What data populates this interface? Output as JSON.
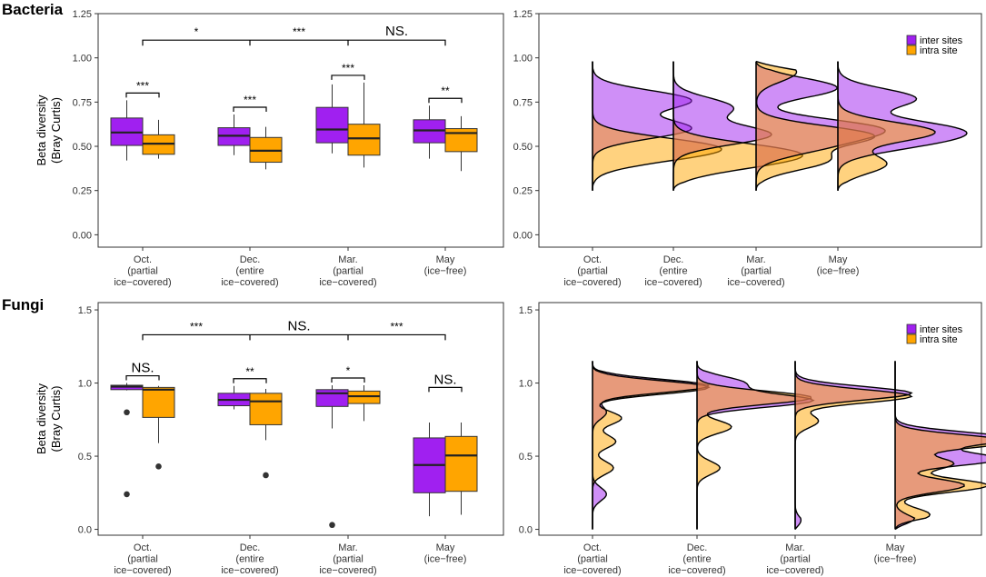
{
  "colors": {
    "inter": "#A020F0",
    "intra": "#FFA500",
    "overlap": "#E2885E"
  },
  "legend": {
    "inter": "inter sites",
    "intra": "intra site"
  },
  "ylabel_line1": "Beta diversity",
  "ylabel_line2": "(Bray Curtis)",
  "categories": [
    [
      "Oct.",
      "(partial",
      "ice−covered)"
    ],
    [
      "Dec.",
      "(entire",
      "ice−covered)"
    ],
    [
      "Mar.",
      "(partial",
      "ice−covered)"
    ],
    [
      "May",
      "(ice−free)"
    ]
  ],
  "chart_data": [
    {
      "type": "boxplot",
      "panel": "Bacteria",
      "ylim": [
        -0.07,
        1.25
      ],
      "yticks": [
        "0.00",
        "0.25",
        "0.50",
        "0.75",
        "1.00",
        "1.25"
      ],
      "series": [
        {
          "name": "inter sites",
          "boxes": [
            {
              "min": 0.42,
              "q1": 0.505,
              "median": 0.578,
              "q3": 0.66,
              "max": 0.76,
              "outliers": []
            },
            {
              "min": 0.45,
              "q1": 0.505,
              "median": 0.56,
              "q3": 0.605,
              "max": 0.68,
              "outliers": []
            },
            {
              "min": 0.46,
              "q1": 0.52,
              "median": 0.595,
              "q3": 0.72,
              "max": 0.85,
              "outliers": []
            },
            {
              "min": 0.43,
              "q1": 0.52,
              "median": 0.59,
              "q3": 0.65,
              "max": 0.73,
              "outliers": []
            }
          ]
        },
        {
          "name": "intra site",
          "boxes": [
            {
              "min": 0.43,
              "q1": 0.455,
              "median": 0.515,
              "q3": 0.565,
              "max": 0.65,
              "outliers": []
            },
            {
              "min": 0.37,
              "q1": 0.41,
              "median": 0.475,
              "q3": 0.55,
              "max": 0.61,
              "outliers": []
            },
            {
              "min": 0.38,
              "q1": 0.45,
              "median": 0.545,
              "q3": 0.625,
              "max": 0.86,
              "outliers": []
            },
            {
              "min": 0.36,
              "q1": 0.47,
              "median": 0.575,
              "q3": 0.6,
              "max": 0.67,
              "outliers": []
            }
          ]
        }
      ],
      "pair_significance": [
        "***",
        "***",
        "***",
        "**"
      ],
      "top_bracket": {
        "y": 1.1,
        "labels": [
          "*",
          "***",
          "NS."
        ]
      }
    },
    {
      "type": "density-ridges",
      "panel": "Bacteria",
      "ylim": [
        -0.07,
        1.25
      ],
      "yticks": [
        "0.00",
        "0.25",
        "0.50",
        "0.75",
        "1.00",
        "1.25"
      ],
      "legend_position": "top-right",
      "range": [
        0.25,
        0.98
      ],
      "series": [
        {
          "name": "inter sites",
          "groups": [
            [
              [
                0.6,
                1.0
              ],
              [
                0.76,
                1.0
              ]
            ],
            [
              [
                0.565,
                1.0
              ],
              [
                0.72,
                0.6
              ]
            ],
            [
              [
                0.6,
                1.0
              ],
              [
                0.83,
                0.7
              ],
              [
                0.5,
                0.5
              ]
            ],
            [
              [
                0.6,
                1.0
              ],
              [
                0.77,
                0.8
              ],
              [
                0.52,
                0.7
              ]
            ]
          ]
        },
        {
          "name": "intra site",
          "groups": [
            [
              [
                0.5,
                1.0
              ],
              [
                0.44,
                0.5
              ]
            ],
            [
              [
                0.47,
                1.0
              ],
              [
                0.4,
                0.6
              ]
            ],
            [
              [
                0.56,
                1.0
              ],
              [
                0.42,
                0.6
              ],
              [
                0.92,
                0.35
              ]
            ],
            [
              [
                0.58,
                1.0
              ],
              [
                0.4,
                0.5
              ]
            ]
          ]
        }
      ]
    },
    {
      "type": "boxplot",
      "panel": "Fungi",
      "ylim": [
        -0.04,
        1.55
      ],
      "yticks": [
        "0.0",
        "0.5",
        "1.0",
        "1.5"
      ],
      "series": [
        {
          "name": "inter sites",
          "boxes": [
            {
              "min": 0.95,
              "q1": 0.955,
              "median": 0.975,
              "q3": 0.985,
              "max": 1.0,
              "outliers": [
                0.8,
                0.24
              ]
            },
            {
              "min": 0.82,
              "q1": 0.845,
              "median": 0.885,
              "q3": 0.93,
              "max": 0.98,
              "outliers": []
            },
            {
              "min": 0.69,
              "q1": 0.84,
              "median": 0.93,
              "q3": 0.955,
              "max": 0.985,
              "outliers": [
                0.03
              ]
            },
            {
              "min": 0.09,
              "q1": 0.25,
              "median": 0.44,
              "q3": 0.625,
              "max": 0.73,
              "outliers": []
            }
          ]
        },
        {
          "name": "intra site",
          "boxes": [
            {
              "min": 0.59,
              "q1": 0.765,
              "median": 0.955,
              "q3": 0.97,
              "max": 0.98,
              "outliers": [
                0.43
              ]
            },
            {
              "min": 0.61,
              "q1": 0.715,
              "median": 0.875,
              "q3": 0.93,
              "max": 0.96,
              "outliers": [
                0.37
              ]
            },
            {
              "min": 0.74,
              "q1": 0.86,
              "median": 0.91,
              "q3": 0.945,
              "max": 0.985,
              "outliers": []
            },
            {
              "min": 0.1,
              "q1": 0.26,
              "median": 0.505,
              "q3": 0.635,
              "max": 0.73,
              "outliers": []
            }
          ]
        }
      ],
      "pair_significance": [
        "NS.",
        "**",
        "*",
        "NS."
      ],
      "top_bracket": {
        "y": 1.33,
        "labels": [
          "***",
          "NS.",
          "***"
        ]
      }
    },
    {
      "type": "density-ridges",
      "panel": "Fungi",
      "ylim": [
        -0.04,
        1.55
      ],
      "yticks": [
        "0.0",
        "0.5",
        "1.0",
        "1.5"
      ],
      "legend_position": "top-right",
      "range": [
        0.0,
        1.15
      ],
      "series": [
        {
          "name": "inter sites",
          "groups": [
            [
              [
                0.98,
                1.0
              ],
              [
                0.8,
                0.12
              ],
              [
                0.24,
                0.12
              ]
            ],
            [
              [
                0.88,
                1.0
              ],
              [
                1.0,
                0.4
              ]
            ],
            [
              [
                0.93,
                1.0
              ],
              [
                0.03,
                0.08
              ]
            ],
            [
              [
                0.48,
                0.9
              ],
              [
                0.62,
                1.0
              ],
              [
                0.3,
                0.6
              ],
              [
                0.05,
                0.2
              ]
            ]
          ]
        },
        {
          "name": "intra site",
          "groups": [
            [
              [
                0.97,
                1.0
              ],
              [
                0.76,
                0.25
              ],
              [
                0.6,
                0.2
              ],
              [
                0.42,
                0.18
              ]
            ],
            [
              [
                0.9,
                1.0
              ],
              [
                0.7,
                0.3
              ],
              [
                0.42,
                0.2
              ]
            ],
            [
              [
                0.91,
                1.0
              ],
              [
                0.74,
                0.2
              ]
            ],
            [
              [
                0.6,
                1.0
              ],
              [
                0.3,
                0.8
              ],
              [
                0.45,
                0.5
              ],
              [
                0.1,
                0.3
              ]
            ]
          ]
        }
      ]
    }
  ]
}
